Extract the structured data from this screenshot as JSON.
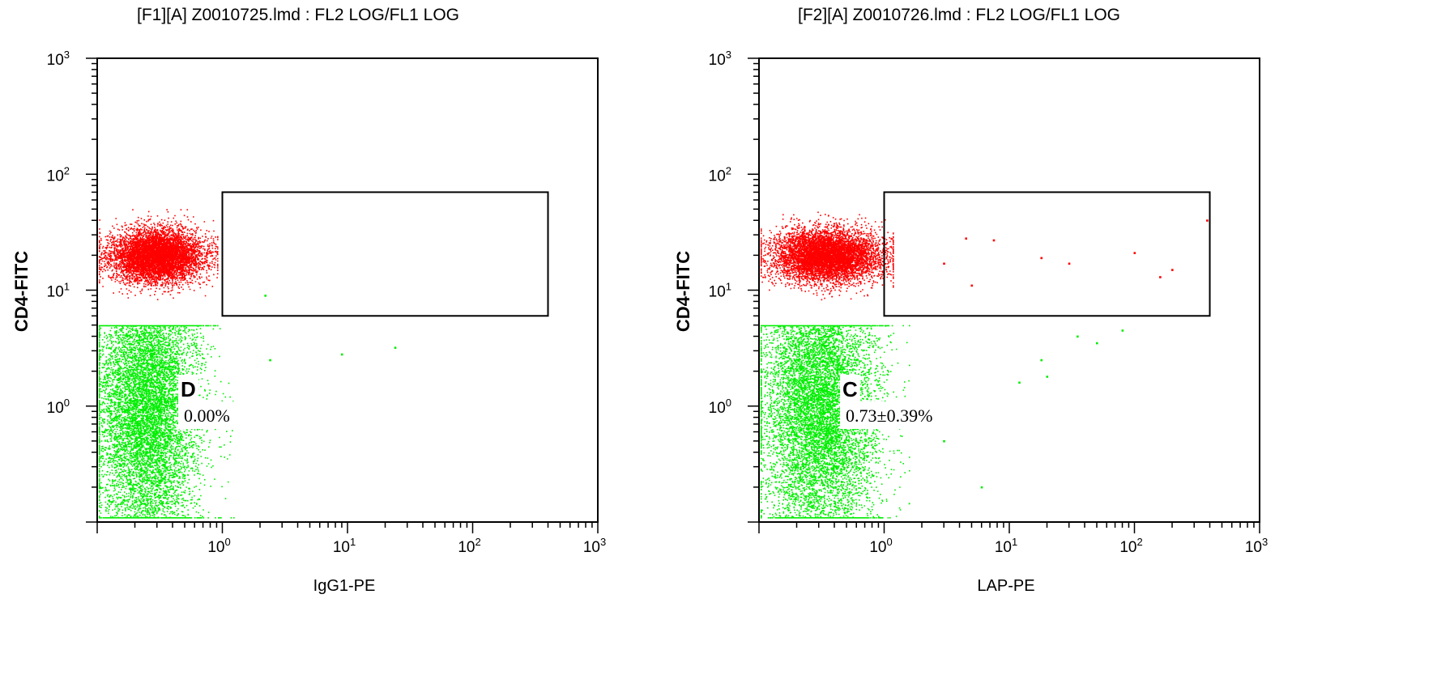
{
  "chart_data": [
    {
      "type": "scatter",
      "title": "[F1][A] Z0010725.lmd : FL2 LOG/FL1 LOG",
      "xlabel": "IgG1-PE",
      "ylabel": "CD4-FITC",
      "xscale": "log",
      "yscale": "log",
      "xlim": [
        0.1,
        1000
      ],
      "ylim": [
        0.1,
        1000
      ],
      "x_ticks": [
        {
          "v": 1,
          "e": "0"
        },
        {
          "v": 10,
          "e": "1"
        },
        {
          "v": 100,
          "e": "2"
        },
        {
          "v": 1000,
          "e": "3"
        }
      ],
      "y_ticks": [
        {
          "v": 1,
          "e": "0"
        },
        {
          "v": 10,
          "e": "1"
        },
        {
          "v": 100,
          "e": "2"
        },
        {
          "v": 1000,
          "e": "3"
        }
      ],
      "gate": {
        "x": [
          1,
          400
        ],
        "y": [
          6,
          70
        ]
      },
      "gate_label": "D",
      "gate_value": "0.00%",
      "series": [
        {
          "name": "",
          "color": "#00ee00",
          "population": "CD4-negative",
          "x_median": 0.25,
          "y_median": 1.0
        },
        {
          "name": "",
          "color": "#ff0000",
          "population": "CD4-positive",
          "x_median": 0.3,
          "y_median": 20
        }
      ],
      "outliers": [
        {
          "x": 2.2,
          "y": 9.0,
          "color": "#00ee00"
        },
        {
          "x": 2.4,
          "y": 2.5,
          "color": "#00ee00"
        },
        {
          "x": 9,
          "y": 2.8,
          "color": "#00ee00"
        },
        {
          "x": 24,
          "y": 3.2,
          "color": "#00ee00"
        }
      ]
    },
    {
      "type": "scatter",
      "title": "[F2][A] Z0010726.lmd : FL2 LOG/FL1 LOG",
      "xlabel": "LAP-PE",
      "ylabel": "CD4-FITC",
      "xscale": "log",
      "yscale": "log",
      "xlim": [
        0.1,
        1000
      ],
      "ylim": [
        0.1,
        1000
      ],
      "x_ticks": [
        {
          "v": 1,
          "e": "0"
        },
        {
          "v": 10,
          "e": "1"
        },
        {
          "v": 100,
          "e": "2"
        },
        {
          "v": 1000,
          "e": "3"
        }
      ],
      "y_ticks": [
        {
          "v": 1,
          "e": "0"
        },
        {
          "v": 10,
          "e": "1"
        },
        {
          "v": 100,
          "e": "2"
        },
        {
          "v": 1000,
          "e": "3"
        }
      ],
      "gate": {
        "x": [
          1,
          400
        ],
        "y": [
          6,
          70
        ]
      },
      "gate_label": "C",
      "gate_value": "0.73±0.39%",
      "series": [
        {
          "name": "",
          "color": "#00ee00",
          "population": "CD4-negative",
          "x_median": 0.3,
          "y_median": 1.0
        },
        {
          "name": "",
          "color": "#ff0000",
          "population": "CD4-positive",
          "x_median": 0.35,
          "y_median": 20
        }
      ],
      "outliers": [
        {
          "x": 4.5,
          "y": 28,
          "color": "#ff0000"
        },
        {
          "x": 7.5,
          "y": 27,
          "color": "#ff0000"
        },
        {
          "x": 18,
          "y": 19,
          "color": "#ff0000"
        },
        {
          "x": 30,
          "y": 17,
          "color": "#ff0000"
        },
        {
          "x": 100,
          "y": 21,
          "color": "#ff0000"
        },
        {
          "x": 200,
          "y": 15,
          "color": "#ff0000"
        },
        {
          "x": 160,
          "y": 13,
          "color": "#ff0000"
        },
        {
          "x": 380,
          "y": 40,
          "color": "#ff0000"
        },
        {
          "x": 5,
          "y": 11,
          "color": "#ff0000"
        },
        {
          "x": 3,
          "y": 17,
          "color": "#ff0000"
        },
        {
          "x": 18,
          "y": 2.5,
          "color": "#00ee00"
        },
        {
          "x": 20,
          "y": 1.8,
          "color": "#00ee00"
        },
        {
          "x": 35,
          "y": 4.0,
          "color": "#00ee00"
        },
        {
          "x": 80,
          "y": 4.5,
          "color": "#00ee00"
        },
        {
          "x": 6,
          "y": 0.2,
          "color": "#00ee00"
        },
        {
          "x": 3,
          "y": 0.5,
          "color": "#00ee00"
        },
        {
          "x": 12,
          "y": 1.6,
          "color": "#00ee00"
        },
        {
          "x": 50,
          "y": 3.5,
          "color": "#00ee00"
        }
      ]
    }
  ]
}
